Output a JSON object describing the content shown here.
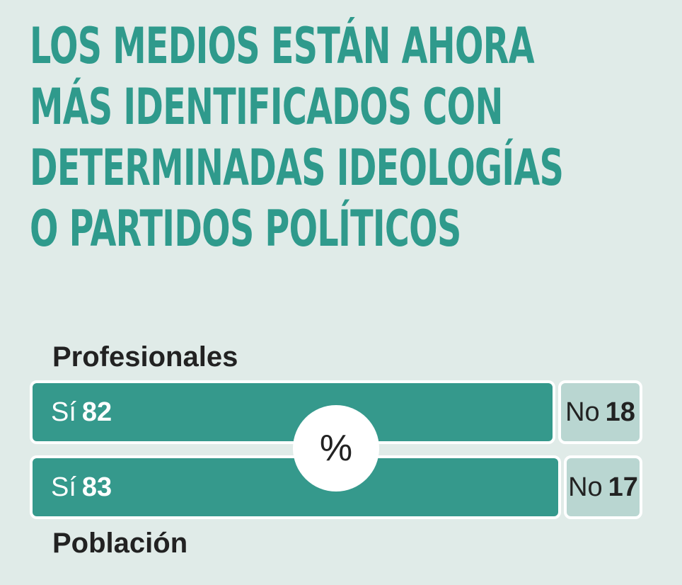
{
  "title_lines": [
    "LOS MEDIOS ESTÁN AHORA",
    "MÁS IDENTIFICADOS CON",
    "DETERMINADAS IDEOLOGÍAS",
    "O PARTIDOS POLÍTICOS"
  ],
  "unit_symbol": "%",
  "chart_data": {
    "type": "bar",
    "orientation": "horizontal-stacked",
    "unit": "%",
    "categories": [
      "Profesionales",
      "Población"
    ],
    "series": [
      {
        "name": "Sí",
        "values": [
          82,
          83
        ]
      },
      {
        "name": "No",
        "values": [
          18,
          17
        ]
      }
    ],
    "colors": {
      "Sí": "#35998c",
      "No": "#b9d6d1"
    }
  }
}
